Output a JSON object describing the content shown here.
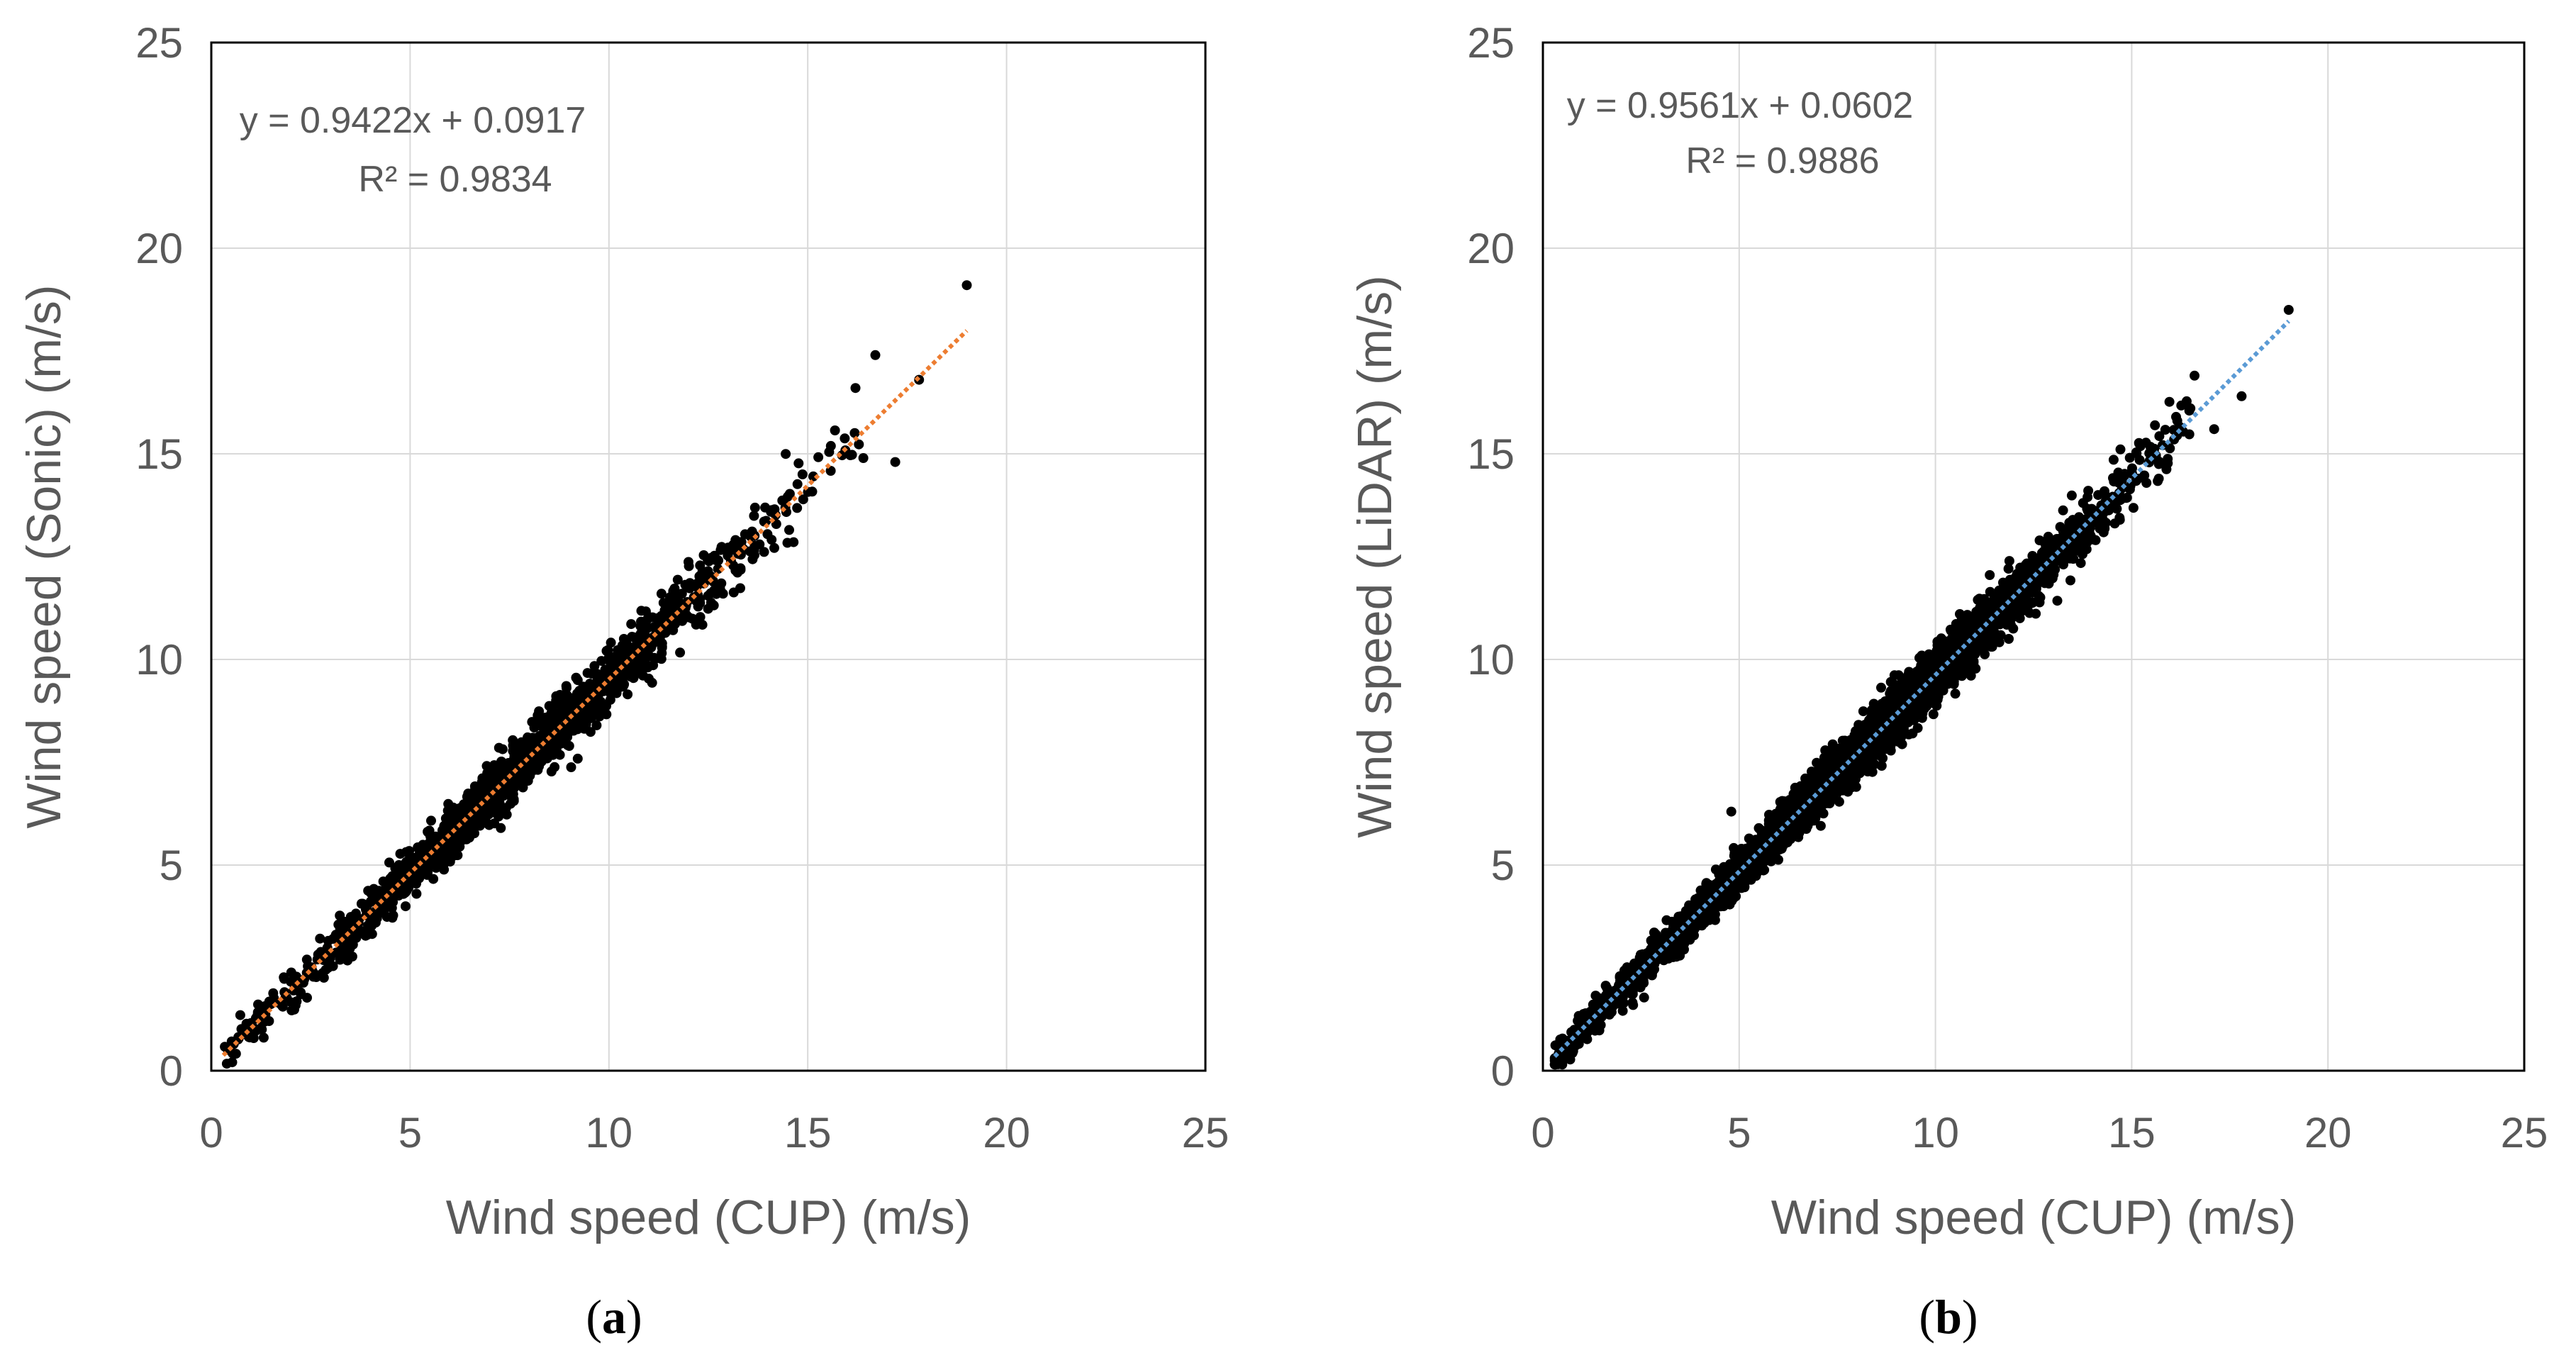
{
  "chart_data": [
    {
      "type": "scatter",
      "panel_open": "(",
      "panel_letter": "a",
      "panel_close": ")",
      "xlabel": "Wind speed (CUP) (m/s)",
      "ylabel": "Wind speed (Sonic) (m/s)",
      "xlim": [
        0,
        25
      ],
      "ylim": [
        0,
        25
      ],
      "xticks": [
        "0",
        "5",
        "10",
        "15",
        "20",
        "25"
      ],
      "yticks": [
        "0",
        "5",
        "10",
        "15",
        "20",
        "25"
      ],
      "grid": true,
      "trendline": {
        "slope": 0.9422,
        "intercept": 0.0917,
        "x_range": [
          0.3,
          19.0
        ],
        "color": "#ed7d31",
        "style": "dotted"
      },
      "equation_text": "y = 0.9422x + 0.0917",
      "r2_text": "R² = 0.9834",
      "marker_color": "#000000",
      "points_summary": {
        "n_approx": 1400,
        "x_range": [
          0.3,
          19.0
        ],
        "scatter_sd": 0.32
      },
      "outliers": [
        {
          "x": 19.0,
          "y": 19.1
        },
        {
          "x": 17.2,
          "y": 14.8
        },
        {
          "x": 16.7,
          "y": 17.4
        },
        {
          "x": 17.8,
          "y": 16.8
        },
        {
          "x": 16.2,
          "y": 16.6
        }
      ]
    },
    {
      "type": "scatter",
      "panel_open": "(",
      "panel_letter": "b",
      "panel_close": ")",
      "xlabel": "Wind speed (CUP) (m/s)",
      "ylabel": "Wind speed (LiDAR) (m/s)",
      "xlim": [
        0,
        25
      ],
      "ylim": [
        0,
        25
      ],
      "xticks": [
        "0",
        "5",
        "10",
        "15",
        "20",
        "25"
      ],
      "yticks": [
        "0",
        "5",
        "10",
        "15",
        "20",
        "25"
      ],
      "grid": true,
      "trendline": {
        "slope": 0.9561,
        "intercept": 0.0602,
        "x_range": [
          0.3,
          19.0
        ],
        "color": "#5b9bd5",
        "style": "dotted"
      },
      "equation_text": "y = 0.9561x + 0.0602",
      "r2_text": "R² = 0.9886",
      "marker_color": "#000000",
      "points_summary": {
        "n_approx": 4200,
        "x_range": [
          0.3,
          19.0
        ],
        "scatter_sd": 0.26
      },
      "outliers": [
        {
          "x": 19.0,
          "y": 18.5
        },
        {
          "x": 17.8,
          "y": 16.4
        },
        {
          "x": 16.6,
          "y": 16.9
        },
        {
          "x": 17.1,
          "y": 15.6
        },
        {
          "x": 4.8,
          "y": 6.3
        }
      ]
    }
  ]
}
